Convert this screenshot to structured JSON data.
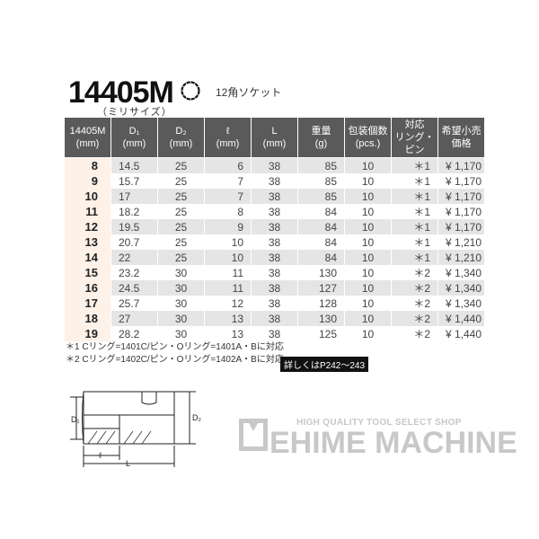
{
  "product": {
    "code": "14405M",
    "subtitle": "（ミリサイズ）",
    "type_icon": "12-point-socket-icon",
    "type_label": "12角ソケット"
  },
  "table": {
    "headers": [
      [
        "14405M",
        "(mm)"
      ],
      [
        "D₁",
        "(mm)"
      ],
      [
        "D₂",
        "(mm)"
      ],
      [
        "ℓ",
        "(mm)"
      ],
      [
        "L",
        "(mm)"
      ],
      [
        "重量",
        "(g)"
      ],
      [
        "包装個数",
        "(pcs.)"
      ],
      [
        "対応",
        "リング・ピン"
      ],
      [
        "希望小売",
        "価格"
      ]
    ],
    "rows": [
      [
        "8",
        "14.5",
        "25",
        "6",
        "38",
        "85",
        "10",
        "＊1",
        "¥ 1,170"
      ],
      [
        "9",
        "15.7",
        "25",
        "7",
        "38",
        "85",
        "10",
        "＊1",
        "¥ 1,170"
      ],
      [
        "10",
        "17",
        "25",
        "7",
        "38",
        "85",
        "10",
        "＊1",
        "¥ 1,170"
      ],
      [
        "11",
        "18.2",
        "25",
        "8",
        "38",
        "84",
        "10",
        "＊1",
        "¥ 1,170"
      ],
      [
        "12",
        "19.5",
        "25",
        "9",
        "38",
        "84",
        "10",
        "＊1",
        "¥ 1,170"
      ],
      [
        "13",
        "20.7",
        "25",
        "10",
        "38",
        "84",
        "10",
        "＊1",
        "¥ 1,210"
      ],
      [
        "14",
        "22",
        "25",
        "10",
        "38",
        "84",
        "10",
        "＊1",
        "¥ 1,210"
      ],
      [
        "15",
        "23.2",
        "30",
        "11",
        "38",
        "130",
        "10",
        "＊2",
        "¥ 1,340"
      ],
      [
        "16",
        "24.5",
        "30",
        "11",
        "38",
        "127",
        "10",
        "＊2",
        "¥ 1,340"
      ],
      [
        "17",
        "25.7",
        "30",
        "12",
        "38",
        "128",
        "10",
        "＊2",
        "¥ 1,340"
      ],
      [
        "18",
        "27",
        "30",
        "13",
        "38",
        "130",
        "10",
        "＊2",
        "¥ 1,440"
      ],
      [
        "19",
        "28.2",
        "30",
        "13",
        "38",
        "125",
        "10",
        "＊2",
        "¥ 1,440"
      ]
    ]
  },
  "notes": [
    "＊1 Cリング=1401C/ピン・Oリング=1401A・Bに対応",
    "＊2 Cリング=1402C/ピン・Oリング=1402A・Bに対応"
  ],
  "reference_badge": "詳しくはP242～243",
  "diagram": {
    "labels": {
      "d1": "D₁",
      "d2": "D₂",
      "l": "ℓ",
      "L": "L"
    }
  },
  "logo": {
    "tagline": "HIGH QUALITY TOOL SELECT SHOP",
    "name": "EHIME MACHINE",
    "color": "#c8c8c8"
  },
  "colors": {
    "header_bg": "#5a5a5a",
    "alt_row": "#e5e5e5",
    "size_col": "#fdf1e8"
  }
}
